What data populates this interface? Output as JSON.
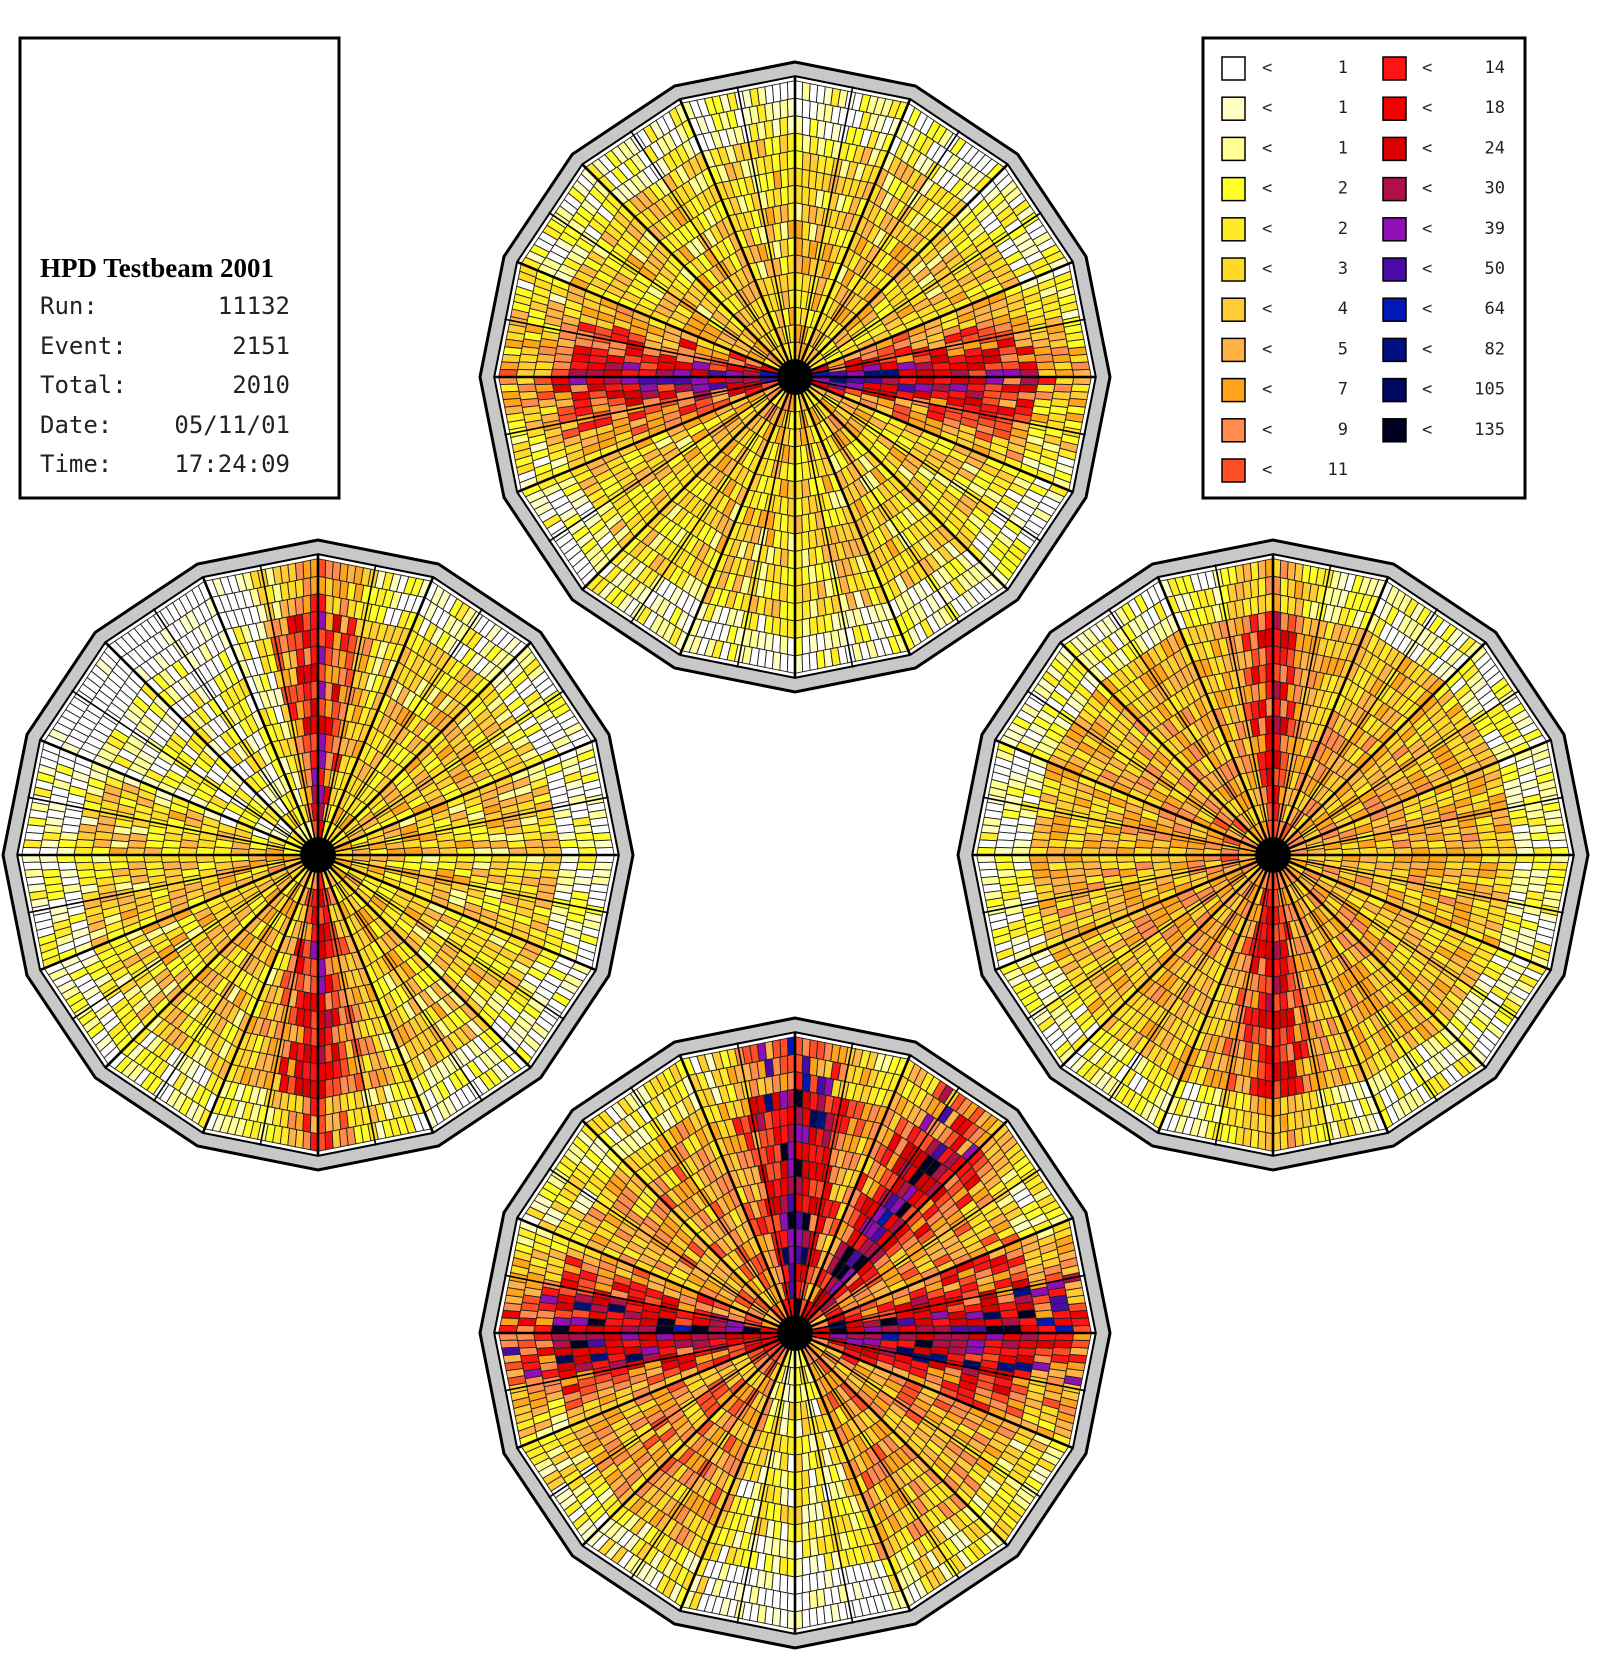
{
  "info": {
    "title": "HPD Testbeam 2001",
    "rows": [
      {
        "label": "Run:",
        "value": "11132"
      },
      {
        "label": "Event:",
        "value": "2151"
      },
      {
        "label": "Total:",
        "value": "2010"
      },
      {
        "label": "Date:",
        "value": "05/11/01"
      },
      {
        "label": "Time:",
        "value": "17:24:09"
      }
    ]
  },
  "legend": {
    "symbol": "<",
    "entries": [
      {
        "color": "#ffffff",
        "value": "1"
      },
      {
        "color": "#ffffc4",
        "value": "1"
      },
      {
        "color": "#ffff96",
        "value": "1"
      },
      {
        "color": "#ffff26",
        "value": "2"
      },
      {
        "color": "#ffec26",
        "value": "2"
      },
      {
        "color": "#ffdb26",
        "value": "3"
      },
      {
        "color": "#ffcc33",
        "value": "4"
      },
      {
        "color": "#ffb347",
        "value": "5"
      },
      {
        "color": "#ffa31a",
        "value": "7"
      },
      {
        "color": "#ff8c4d",
        "value": "9"
      },
      {
        "color": "#ff4d26",
        "value": "11"
      },
      {
        "color": "#ff1414",
        "value": "14"
      },
      {
        "color": "#f00000",
        "value": "18"
      },
      {
        "color": "#d90000",
        "value": "24"
      },
      {
        "color": "#b0104a",
        "value": "30"
      },
      {
        "color": "#8f0fb5",
        "value": "39"
      },
      {
        "color": "#4a0aa8",
        "value": "50"
      },
      {
        "color": "#0018b5",
        "value": "64"
      },
      {
        "color": "#001080",
        "value": "82"
      },
      {
        "color": "#000860",
        "value": "105"
      },
      {
        "color": "#000020",
        "value": "135"
      }
    ]
  },
  "chart_data": {
    "type": "heatmap",
    "description_units": "hit counts per pixel, polar hexadecagonal pixel layout",
    "sectors": 16,
    "rings": 16,
    "detectors": [
      {
        "id": "top",
        "pattern": "horizontal-band"
      },
      {
        "id": "left",
        "pattern": "vertical-band"
      },
      {
        "id": "right",
        "pattern": "vertical-band-broad"
      },
      {
        "id": "bottom",
        "pattern": "mixed-hot"
      }
    ]
  }
}
